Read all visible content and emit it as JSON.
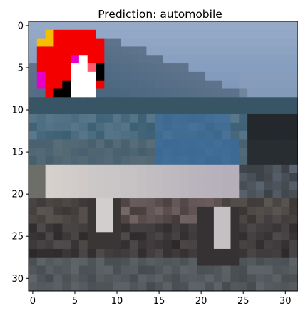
{
  "chart_data": {
    "type": "heatmap",
    "title": "Prediction: automobile",
    "xlabel": "",
    "ylabel": "",
    "xlim": [
      -0.5,
      31.5
    ],
    "ylim": [
      31.5,
      -0.5
    ],
    "grid": false,
    "x_ticks": [
      0,
      5,
      10,
      15,
      20,
      25,
      30
    ],
    "y_ticks": [
      0,
      5,
      10,
      15,
      20,
      25,
      30
    ],
    "image_size": [
      32,
      32
    ],
    "image_content": "low-resolution photo of a silver car in front of a mountain, with a red/white/magenta pixel trigger patch in the top-left corner",
    "trigger_patch": {
      "rows": [
        1,
        8
      ],
      "cols": [
        1,
        8
      ]
    }
  }
}
